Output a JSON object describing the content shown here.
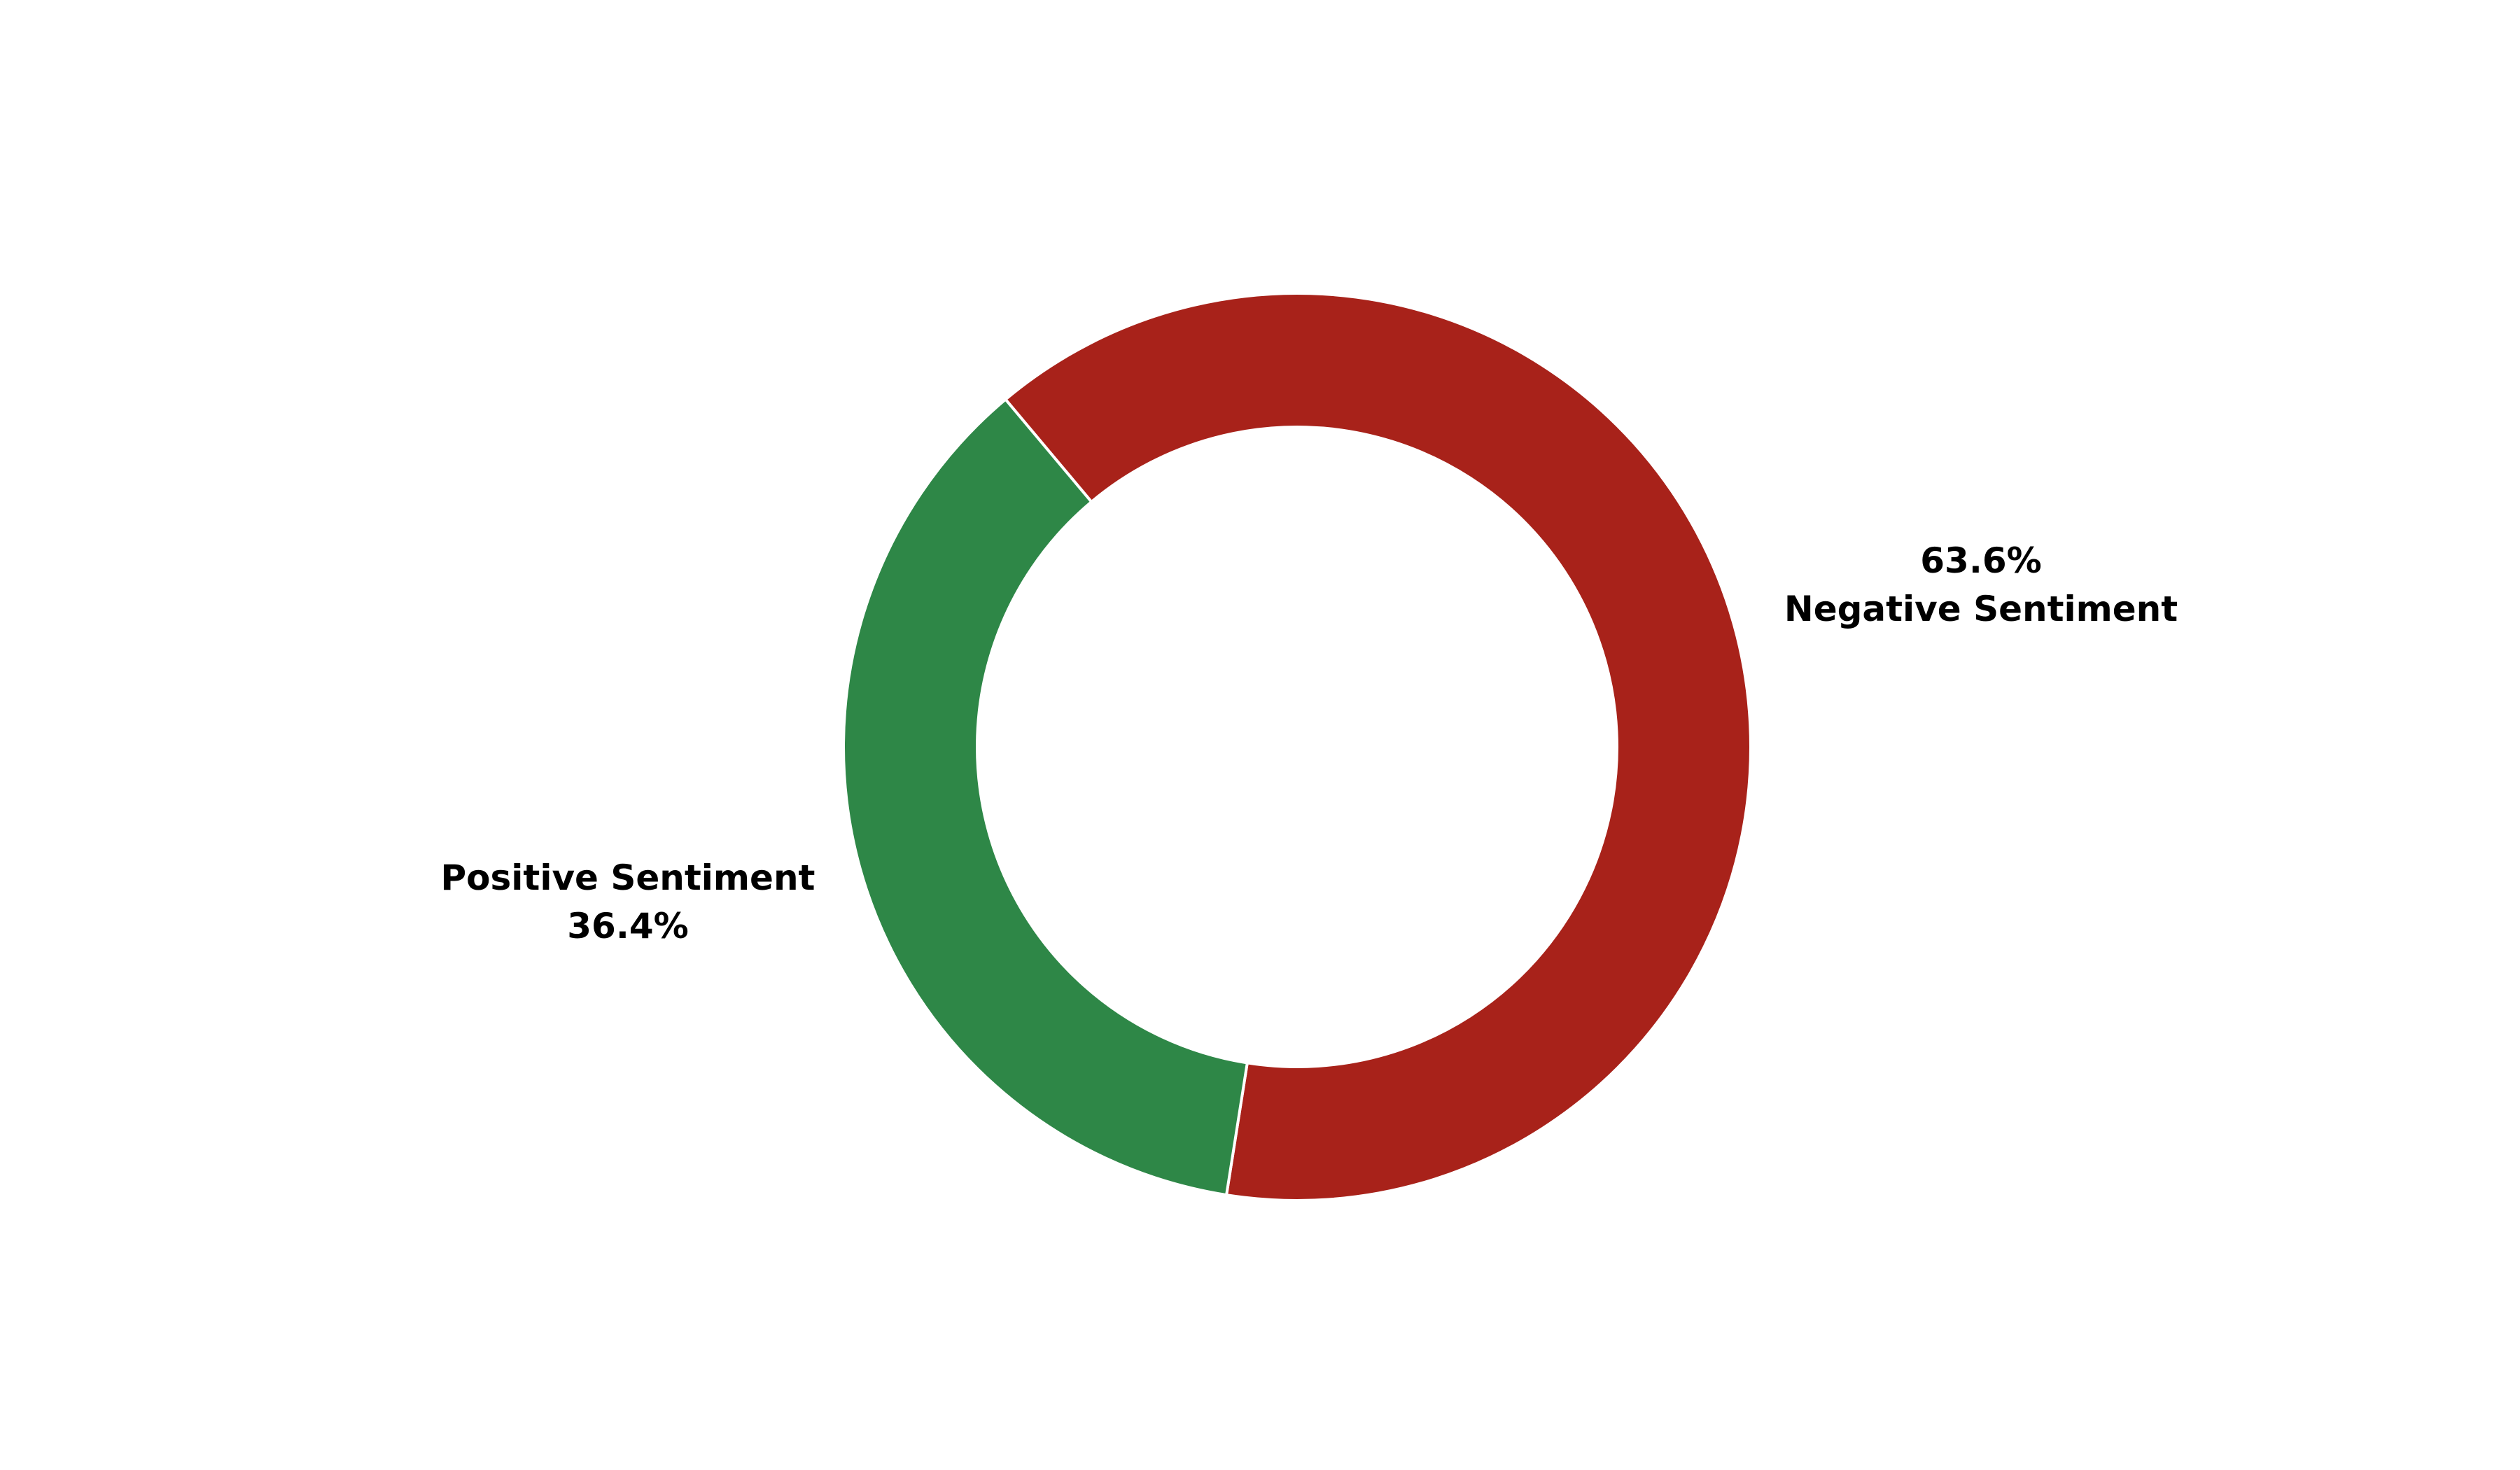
{
  "chart_data": {
    "type": "pie",
    "style": "donut",
    "title": "",
    "legend": "none",
    "slices": [
      {
        "key": "negative",
        "label": "Negative Sentiment",
        "percent_label": "63.6%",
        "value": 63.6,
        "color": "#a8221a"
      },
      {
        "key": "positive",
        "label": "Positive Sentiment",
        "percent_label": "36.4%",
        "value": 36.4,
        "color": "#2e8747"
      }
    ],
    "slice_border_color": "#ffffff"
  }
}
